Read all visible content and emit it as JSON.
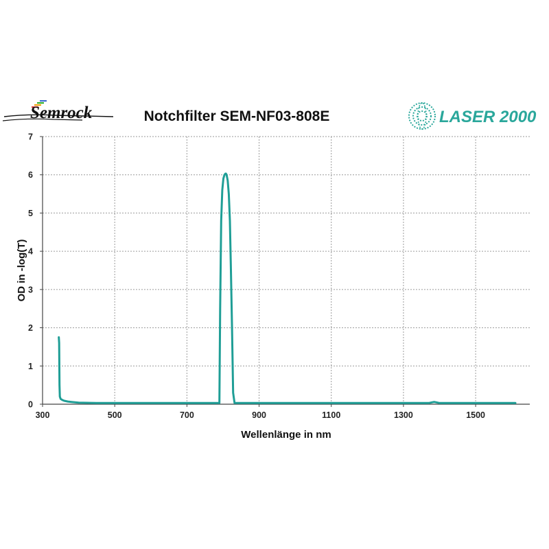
{
  "header": {
    "left_logo": "Semrock",
    "title": "Notchfilter SEM-NF03-808E",
    "right_logo": "LASER 2000"
  },
  "colors": {
    "series": "#1f9e96",
    "grid": "#9a9a9a",
    "axis": "#444444",
    "laser_logo": "#2aa79b"
  },
  "chart_data": {
    "type": "line",
    "title": "Notchfilter SEM-NF03-808E",
    "xlabel": "Wellenlänge in nm",
    "ylabel": "OD in -log(T)",
    "xlim": [
      300,
      1650
    ],
    "ylim": [
      0,
      7
    ],
    "xticks": [
      300,
      500,
      700,
      900,
      1100,
      1300,
      1500
    ],
    "yticks": [
      0,
      1,
      2,
      3,
      4,
      5,
      6,
      7
    ],
    "grid": true,
    "legend": "none",
    "series": [
      {
        "x": [
          345,
          346,
          347,
          348,
          350,
          355,
          360,
          370,
          380,
          400,
          450,
          500,
          600,
          700,
          785,
          790,
          792,
          795,
          798,
          801,
          804,
          807,
          808,
          810,
          813,
          816,
          819,
          822,
          825,
          828,
          832,
          840,
          900,
          1000,
          1100,
          1200,
          1300,
          1370,
          1380,
          1385,
          1390,
          1400,
          1500,
          1610
        ],
        "y": [
          1.75,
          1.6,
          0.5,
          0.2,
          0.14,
          0.11,
          0.09,
          0.07,
          0.06,
          0.04,
          0.03,
          0.03,
          0.03,
          0.03,
          0.03,
          0.03,
          2.5,
          4.8,
          5.6,
          5.9,
          6.0,
          6.03,
          6.03,
          6.0,
          5.85,
          5.5,
          4.8,
          3.5,
          2.0,
          0.3,
          0.03,
          0.03,
          0.03,
          0.03,
          0.03,
          0.03,
          0.03,
          0.03,
          0.05,
          0.06,
          0.05,
          0.03,
          0.03,
          0.03
        ]
      }
    ]
  }
}
